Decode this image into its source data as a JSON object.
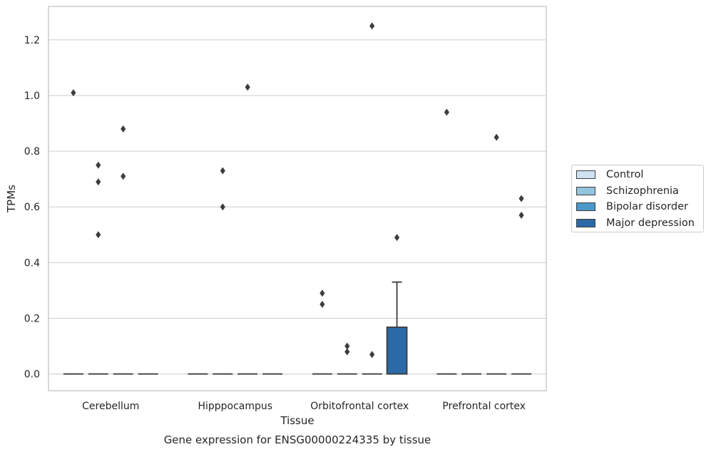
{
  "chart_data": {
    "type": "box",
    "title": "Gene expression for ENSG00000224335 by tissue",
    "xlabel": "Tissue",
    "ylabel": "TPMs",
    "ylim": [
      -0.06,
      1.32
    ],
    "yticks": [
      0.0,
      0.2,
      0.4,
      0.6,
      0.8,
      1.0,
      1.2
    ],
    "ytick_labels": [
      "0.0",
      "0.2",
      "0.4",
      "0.6",
      "0.8",
      "1.0",
      "1.2"
    ],
    "grid": "horizontal",
    "legend_position": "right",
    "categories": [
      "Cerebellum",
      "Hipppocampus",
      "Orbitofrontal cortex",
      "Prefrontal cortex"
    ],
    "series": [
      {
        "name": "Control",
        "color": "#cfe1f2",
        "boxes": [
          {
            "q1": 0.0,
            "median": 0.0,
            "q3": 0.0,
            "whislo": 0.0,
            "whishi": 0.0,
            "fliers": [
              1.01
            ]
          },
          {
            "q1": 0.0,
            "median": 0.0,
            "q3": 0.0,
            "whislo": 0.0,
            "whishi": 0.0,
            "fliers": []
          },
          {
            "q1": 0.0,
            "median": 0.0,
            "q3": 0.0,
            "whislo": 0.0,
            "whishi": 0.0,
            "fliers": [
              0.29,
              0.25
            ]
          },
          {
            "q1": 0.0,
            "median": 0.0,
            "q3": 0.0,
            "whislo": 0.0,
            "whishi": 0.0,
            "fliers": [
              0.94
            ]
          }
        ]
      },
      {
        "name": "Schizophrenia",
        "color": "#93c4de",
        "boxes": [
          {
            "q1": 0.0,
            "median": 0.0,
            "q3": 0.0,
            "whislo": 0.0,
            "whishi": 0.0,
            "fliers": [
              0.75,
              0.69,
              0.5
            ]
          },
          {
            "q1": 0.0,
            "median": 0.0,
            "q3": 0.0,
            "whislo": 0.0,
            "whishi": 0.0,
            "fliers": [
              0.73,
              0.6
            ]
          },
          {
            "q1": 0.0,
            "median": 0.0,
            "q3": 0.0,
            "whislo": 0.0,
            "whishi": 0.0,
            "fliers": [
              0.1,
              0.08
            ]
          },
          {
            "q1": 0.0,
            "median": 0.0,
            "q3": 0.0,
            "whislo": 0.0,
            "whishi": 0.0,
            "fliers": []
          }
        ]
      },
      {
        "name": "Bipolar disorder",
        "color": "#4a98c9",
        "boxes": [
          {
            "q1": 0.0,
            "median": 0.0,
            "q3": 0.0,
            "whislo": 0.0,
            "whishi": 0.0,
            "fliers": [
              0.88,
              0.71
            ]
          },
          {
            "q1": 0.0,
            "median": 0.0,
            "q3": 0.0,
            "whislo": 0.0,
            "whishi": 0.0,
            "fliers": [
              1.03
            ]
          },
          {
            "q1": 0.0,
            "median": 0.0,
            "q3": 0.0,
            "whislo": 0.0,
            "whishi": 0.0,
            "fliers": [
              1.25,
              0.07
            ]
          },
          {
            "q1": 0.0,
            "median": 0.0,
            "q3": 0.0,
            "whislo": 0.0,
            "whishi": 0.0,
            "fliers": [
              0.85
            ]
          }
        ]
      },
      {
        "name": "Major depression",
        "color": "#2b6aa7",
        "boxes": [
          {
            "q1": 0.0,
            "median": 0.0,
            "q3": 0.0,
            "whislo": 0.0,
            "whishi": 0.0,
            "fliers": []
          },
          {
            "q1": 0.0,
            "median": 0.0,
            "q3": 0.0,
            "whislo": 0.0,
            "whishi": 0.0,
            "fliers": []
          },
          {
            "q1": 0.0,
            "median": 0.0,
            "q3": 0.168,
            "whislo": 0.0,
            "whishi": 0.33,
            "fliers": [
              0.49
            ]
          },
          {
            "q1": 0.0,
            "median": 0.0,
            "q3": 0.0,
            "whislo": 0.0,
            "whishi": 0.0,
            "fliers": [
              0.63,
              0.57
            ]
          }
        ]
      }
    ]
  }
}
